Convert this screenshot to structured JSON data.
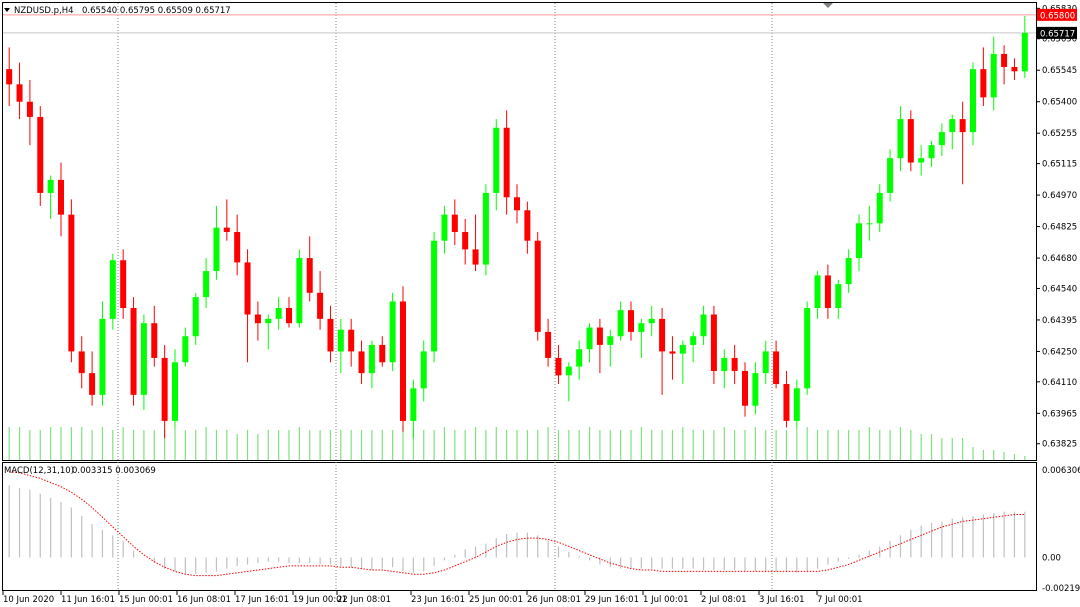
{
  "header": {
    "symbol_label": "NZDUSD.p,H4",
    "ohlc": "0.65540 0.65795 0.65509 0.65717"
  },
  "macd": {
    "label": "MACD(12,31,10)",
    "values": "0.003315 0.003069",
    "axis_ticks": [
      "0.006306",
      "0.00",
      "-0.002195"
    ],
    "ylim": [
      -0.002195,
      0.006306
    ],
    "hist_color": "#c0c0c0",
    "signal_color": "#ff0000"
  },
  "price_tags": {
    "ask": "0.65800",
    "ask_bg": "#ff0000",
    "bid": "0.65717",
    "bid_bg": "#000000"
  },
  "colors": {
    "bull": "#00ff00",
    "bear": "#ff0000",
    "volume": "#7fe07f",
    "frame": "#000000"
  },
  "chart_data": {
    "type": "candlestick",
    "ylim": [
      0.6375,
      0.6585
    ],
    "price_ticks": [
      "0.65830",
      "0.65690",
      "0.65545",
      "0.65400",
      "0.65255",
      "0.65115",
      "0.64970",
      "0.64825",
      "0.64680",
      "0.64540",
      "0.64395",
      "0.64250",
      "0.64110",
      "0.63965",
      "0.63825"
    ],
    "x_labels": [
      "10 Jun 2020",
      "11 Jun 16:01",
      "15 Jun 00:01",
      "16 Jun 08:01",
      "17 Jun 16:01",
      "19 Jun 00:01",
      "22 Jun 08:01",
      "23 Jun 16:01",
      "25 Jun 00:01",
      "26 Jun 08:01",
      "29 Jun 16:01",
      "1 Jul 00:01",
      "2 Jul 08:01",
      "3 Jul 16:01",
      "7 Jul 00:01"
    ],
    "candles": [
      [
        0.6555,
        0.6565,
        0.6538,
        0.6548
      ],
      [
        0.6548,
        0.6558,
        0.6532,
        0.654
      ],
      [
        0.654,
        0.655,
        0.652,
        0.6533
      ],
      [
        0.6533,
        0.6538,
        0.6492,
        0.6498
      ],
      [
        0.6498,
        0.6506,
        0.6486,
        0.6504
      ],
      [
        0.6504,
        0.6512,
        0.6478,
        0.6488
      ],
      [
        0.6488,
        0.6495,
        0.642,
        0.6425
      ],
      [
        0.6425,
        0.6432,
        0.6408,
        0.6415
      ],
      [
        0.6415,
        0.6425,
        0.64,
        0.6405
      ],
      [
        0.6405,
        0.6448,
        0.64,
        0.644
      ],
      [
        0.644,
        0.647,
        0.6435,
        0.6467
      ],
      [
        0.6467,
        0.6472,
        0.644,
        0.6445
      ],
      [
        0.6445,
        0.645,
        0.64,
        0.6405
      ],
      [
        0.6405,
        0.6442,
        0.6398,
        0.6438
      ],
      [
        0.6438,
        0.6446,
        0.6418,
        0.6422
      ],
      [
        0.6422,
        0.6428,
        0.6385,
        0.6393
      ],
      [
        0.6393,
        0.6426,
        0.639,
        0.642
      ],
      [
        0.642,
        0.6436,
        0.6418,
        0.6432
      ],
      [
        0.6432,
        0.6452,
        0.6428,
        0.645
      ],
      [
        0.645,
        0.6468,
        0.6445,
        0.6462
      ],
      [
        0.6462,
        0.6492,
        0.6458,
        0.6482
      ],
      [
        0.6482,
        0.6495,
        0.6476,
        0.648
      ],
      [
        0.648,
        0.6488,
        0.646,
        0.6466
      ],
      [
        0.6466,
        0.6472,
        0.642,
        0.6442
      ],
      [
        0.6442,
        0.6448,
        0.643,
        0.6438
      ],
      [
        0.6438,
        0.6442,
        0.6426,
        0.644
      ],
      [
        0.644,
        0.645,
        0.6435,
        0.6445
      ],
      [
        0.6445,
        0.645,
        0.6436,
        0.6438
      ],
      [
        0.6438,
        0.6472,
        0.6436,
        0.6468
      ],
      [
        0.6468,
        0.6478,
        0.6448,
        0.6452
      ],
      [
        0.6452,
        0.6462,
        0.6435,
        0.644
      ],
      [
        0.644,
        0.6446,
        0.642,
        0.6425
      ],
      [
        0.6425,
        0.644,
        0.6415,
        0.6435
      ],
      [
        0.6435,
        0.644,
        0.6418,
        0.6425
      ],
      [
        0.6425,
        0.643,
        0.641,
        0.6415
      ],
      [
        0.6415,
        0.643,
        0.6408,
        0.6428
      ],
      [
        0.6428,
        0.6432,
        0.6418,
        0.642
      ],
      [
        0.642,
        0.6452,
        0.6416,
        0.6448
      ],
      [
        0.6448,
        0.6455,
        0.6388,
        0.6393
      ],
      [
        0.6393,
        0.6412,
        0.6385,
        0.6408
      ],
      [
        0.6408,
        0.643,
        0.6402,
        0.6425
      ],
      [
        0.6425,
        0.648,
        0.642,
        0.6476
      ],
      [
        0.6476,
        0.6492,
        0.647,
        0.6488
      ],
      [
        0.6488,
        0.6495,
        0.6474,
        0.648
      ],
      [
        0.648,
        0.6486,
        0.6465,
        0.6472
      ],
      [
        0.6472,
        0.6488,
        0.6462,
        0.6465
      ],
      [
        0.6465,
        0.6502,
        0.646,
        0.6498
      ],
      [
        0.6498,
        0.6532,
        0.649,
        0.6528
      ],
      [
        0.6528,
        0.6536,
        0.6488,
        0.6496
      ],
      [
        0.6496,
        0.6502,
        0.6484,
        0.649
      ],
      [
        0.649,
        0.6494,
        0.647,
        0.6476
      ],
      [
        0.6476,
        0.648,
        0.643,
        0.6434
      ],
      [
        0.6434,
        0.644,
        0.6418,
        0.6422
      ],
      [
        0.6422,
        0.6428,
        0.641,
        0.6414
      ],
      [
        0.6414,
        0.642,
        0.6402,
        0.6418
      ],
      [
        0.6418,
        0.643,
        0.6412,
        0.6426
      ],
      [
        0.6426,
        0.6438,
        0.642,
        0.6436
      ],
      [
        0.6436,
        0.644,
        0.6415,
        0.6428
      ],
      [
        0.6428,
        0.6435,
        0.6418,
        0.6432
      ],
      [
        0.6432,
        0.6448,
        0.643,
        0.6444
      ],
      [
        0.6444,
        0.6448,
        0.643,
        0.6434
      ],
      [
        0.6434,
        0.644,
        0.6422,
        0.6438
      ],
      [
        0.6438,
        0.6446,
        0.6432,
        0.644
      ],
      [
        0.644,
        0.6445,
        0.6405,
        0.6425
      ],
      [
        0.6425,
        0.6432,
        0.6412,
        0.6424
      ],
      [
        0.6424,
        0.643,
        0.641,
        0.6428
      ],
      [
        0.6428,
        0.6434,
        0.642,
        0.6432
      ],
      [
        0.6432,
        0.6446,
        0.6428,
        0.6442
      ],
      [
        0.6442,
        0.6446,
        0.641,
        0.6416
      ],
      [
        0.6416,
        0.6426,
        0.6408,
        0.6422
      ],
      [
        0.6422,
        0.6428,
        0.641,
        0.6416
      ],
      [
        0.6416,
        0.642,
        0.6395,
        0.64
      ],
      [
        0.64,
        0.642,
        0.6396,
        0.6415
      ],
      [
        0.6415,
        0.643,
        0.641,
        0.6425
      ],
      [
        0.6425,
        0.643,
        0.6408,
        0.641
      ],
      [
        0.641,
        0.6416,
        0.639,
        0.6393
      ],
      [
        0.6393,
        0.6412,
        0.639,
        0.6408
      ],
      [
        0.6408,
        0.6448,
        0.6405,
        0.6445
      ],
      [
        0.6445,
        0.6462,
        0.644,
        0.646
      ],
      [
        0.646,
        0.6465,
        0.644,
        0.6445
      ],
      [
        0.6445,
        0.6458,
        0.644,
        0.6456
      ],
      [
        0.6456,
        0.6472,
        0.6452,
        0.6468
      ],
      [
        0.6468,
        0.6488,
        0.6462,
        0.6484
      ],
      [
        0.6484,
        0.6492,
        0.6476,
        0.6484
      ],
      [
        0.6484,
        0.6502,
        0.648,
        0.6498
      ],
      [
        0.6498,
        0.6518,
        0.6494,
        0.6514
      ],
      [
        0.6514,
        0.6538,
        0.6508,
        0.6532
      ],
      [
        0.6532,
        0.6536,
        0.6508,
        0.6512
      ],
      [
        0.6512,
        0.652,
        0.6506,
        0.6514
      ],
      [
        0.6514,
        0.6522,
        0.651,
        0.652
      ],
      [
        0.652,
        0.653,
        0.6515,
        0.6526
      ],
      [
        0.6526,
        0.6534,
        0.6518,
        0.6532
      ],
      [
        0.6532,
        0.654,
        0.6502,
        0.6526
      ],
      [
        0.6526,
        0.6558,
        0.652,
        0.6555
      ],
      [
        0.6555,
        0.6565,
        0.6538,
        0.6542
      ],
      [
        0.6542,
        0.657,
        0.6536,
        0.6562
      ],
      [
        0.6562,
        0.6566,
        0.6548,
        0.6556
      ],
      [
        0.6556,
        0.656,
        0.655,
        0.6554
      ],
      [
        0.6554,
        0.65795,
        0.65509,
        0.65717
      ]
    ],
    "volume": [
      33,
      33,
      30,
      30,
      33,
      33,
      33,
      33,
      30,
      33,
      30,
      33,
      30,
      30,
      30,
      30,
      33,
      30,
      30,
      33,
      30,
      30,
      26,
      30,
      26,
      30,
      30,
      30,
      33,
      30,
      30,
      30,
      30,
      30,
      30,
      30,
      30,
      30,
      33,
      30,
      30,
      30,
      33,
      30,
      30,
      33,
      30,
      33,
      30,
      30,
      30,
      30,
      33,
      30,
      30,
      30,
      33,
      30,
      30,
      30,
      30,
      33,
      30,
      30,
      30,
      33,
      30,
      30,
      30,
      33,
      30,
      30,
      33,
      30,
      30,
      30,
      33,
      33,
      30,
      30,
      30,
      30,
      30,
      33,
      30,
      30,
      33,
      30,
      26,
      26,
      22,
      22,
      22,
      13,
      10,
      10,
      8,
      6,
      4
    ],
    "macd_hist": [
      0.0052,
      0.005,
      0.0049,
      0.0046,
      0.0043,
      0.004,
      0.0036,
      0.003,
      0.0024,
      0.002,
      0.0016,
      0.0012,
      0.0005,
      0.0,
      -0.0004,
      -0.0008,
      -0.001,
      -0.0012,
      -0.0012,
      -0.0011,
      -0.001,
      -0.0008,
      -0.0006,
      -0.0005,
      -0.0004,
      -0.0003,
      -0.0003,
      -0.0004,
      -0.0004,
      -0.0004,
      -0.0005,
      -0.0005,
      -0.0006,
      -0.0007,
      -0.0008,
      -0.0009,
      -0.0008,
      -0.0007,
      -0.001,
      -0.0011,
      -0.001,
      -0.0006,
      -0.0002,
      0.0002,
      0.0006,
      0.0008,
      0.001,
      0.0014,
      0.0017,
      0.0018,
      0.0018,
      0.0016,
      0.0012,
      0.0008,
      0.0004,
      0.0001,
      -0.0002,
      -0.0005,
      -0.0007,
      -0.0008,
      -0.0008,
      -0.0008,
      -0.0008,
      -0.0008,
      -0.0008,
      -0.0008,
      -0.0008,
      -0.0009,
      -0.0009,
      -0.0009,
      -0.0009,
      -0.001,
      -0.001,
      -0.001,
      -0.001,
      -0.001,
      -0.0011,
      -0.001,
      -0.0008,
      -0.0005,
      -0.0003,
      -0.0001,
      0.0002,
      0.0005,
      0.0008,
      0.0012,
      0.0016,
      0.002,
      0.0023,
      0.0025,
      0.0026,
      0.0028,
      0.0029,
      0.003,
      0.0031,
      0.0032,
      0.0033,
      0.0033,
      0.0033
    ],
    "macd_signal": [
      0.0062,
      0.0061,
      0.0059,
      0.0057,
      0.0054,
      0.0051,
      0.0047,
      0.0042,
      0.0036,
      0.0029,
      0.0022,
      0.0015,
      0.0008,
      0.0002,
      -0.0003,
      -0.0007,
      -0.001,
      -0.0012,
      -0.0013,
      -0.0013,
      -0.0013,
      -0.0012,
      -0.0011,
      -0.001,
      -0.0009,
      -0.0008,
      -0.0007,
      -0.0006,
      -0.0006,
      -0.0006,
      -0.0006,
      -0.0006,
      -0.0007,
      -0.0007,
      -0.0008,
      -0.0009,
      -0.0009,
      -0.001,
      -0.0011,
      -0.0012,
      -0.0012,
      -0.0011,
      -0.0009,
      -0.0006,
      -0.0003,
      0.0,
      0.0004,
      0.0008,
      0.0011,
      0.0013,
      0.0014,
      0.0014,
      0.0013,
      0.0011,
      0.0008,
      0.0005,
      0.0002,
      -0.0001,
      -0.0004,
      -0.0006,
      -0.0008,
      -0.0009,
      -0.0009,
      -0.001,
      -0.001,
      -0.001,
      -0.001,
      -0.001,
      -0.001,
      -0.001,
      -0.001,
      -0.001,
      -0.001,
      -0.001,
      -0.001,
      -0.001,
      -0.001,
      -0.001,
      -0.001,
      -0.0009,
      -0.0007,
      -0.0005,
      -0.0002,
      0.0001,
      0.0004,
      0.0007,
      0.001,
      0.0013,
      0.0016,
      0.0019,
      0.0022,
      0.0024,
      0.0026,
      0.0027,
      0.0028,
      0.0029,
      0.003,
      0.0031,
      0.0031
    ]
  }
}
